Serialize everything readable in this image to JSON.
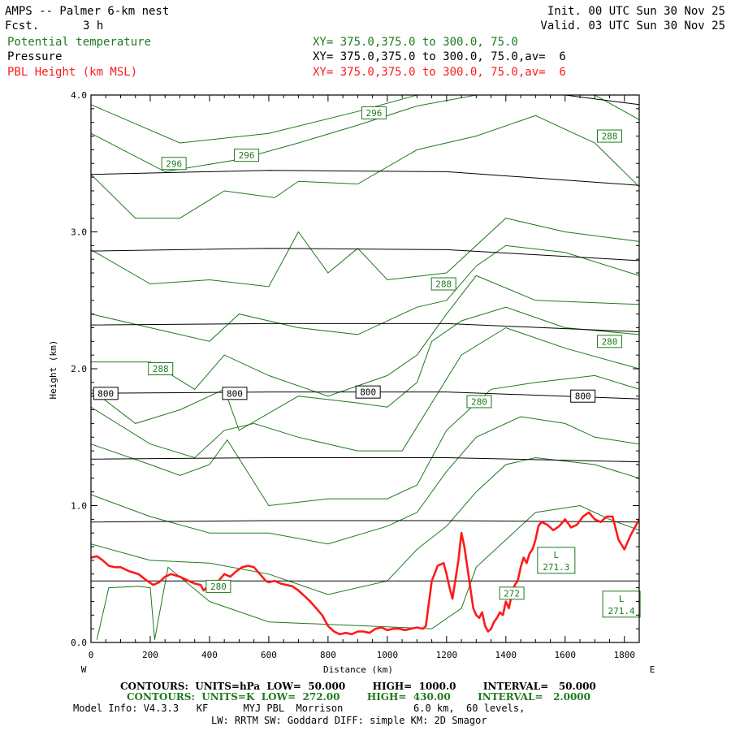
{
  "header": {
    "title": "AMPS -- Palmer 6-km nest",
    "fcst_label": "Fcst.",
    "fcst_value": "3 h",
    "init": "Init. 00 UTC Sun 30 Nov 25",
    "valid": "Valid. 03 UTC Sun 30 Nov 25",
    "var1": "Potential temperature",
    "var2": "Pressure",
    "var3": "PBL Height (km MSL)",
    "xy1": "XY= 375.0,375.0 to 300.0, 75.0",
    "xy2": "XY= 375.0,375.0 to 300.0, 75.0,av=  6",
    "xy3": "XY= 375.0,375.0 to 300.0, 75.0,av=  6"
  },
  "footer": {
    "line1": "CONTOURS:  UNITS=hPa  LOW=  50.000        HIGH=  1000.0        INTERVAL=   50.000",
    "line2": "CONTOURS:  UNITS=K  LOW=  272.00        HIGH=  430.00        INTERVAL=   2.0000",
    "line3": "Model Info: V4.3.3   KF      MYJ PBL  Morrison            6.0 km,  60 levels,",
    "line4": "LW: RRTM SW: Goddard DIFF: simple KM: 2D Smagor"
  },
  "colors": {
    "theta": "#1e7a1e",
    "pressure": "#000000",
    "pbl": "#ff1a1a"
  },
  "chart_data": {
    "type": "line",
    "title": "AMPS -- Palmer 6-km nest",
    "xlabel": "Distance (km)",
    "ylabel": "Height (km)",
    "xlim": [
      0,
      1850
    ],
    "ylim": [
      0.0,
      4.0
    ],
    "x_ticks": [
      0,
      200,
      400,
      600,
      800,
      1000,
      1200,
      1400,
      1600,
      1800
    ],
    "y_ticks": [
      0.0,
      1.0,
      2.0,
      3.0,
      4.0
    ],
    "y_tick_labels": [
      "0.0",
      "1.0",
      "2.0",
      "3.0",
      "4.0"
    ],
    "left_end_label": "W",
    "right_end_label": "E",
    "pressure_contours": [
      {
        "x": [
          0,
          600,
          1200,
          1850
        ],
        "y": [
          0.45,
          0.45,
          0.45,
          0.45
        ]
      },
      {
        "x": [
          0,
          600,
          1200,
          1850
        ],
        "y": [
          0.88,
          0.89,
          0.89,
          0.88
        ]
      },
      {
        "x": [
          0,
          600,
          1200,
          1850
        ],
        "y": [
          1.34,
          1.35,
          1.35,
          1.32
        ]
      },
      {
        "x": [
          0,
          600,
          1200,
          1850
        ],
        "y": [
          1.82,
          1.83,
          1.83,
          1.78
        ]
      },
      {
        "x": [
          0,
          600,
          1200,
          1850
        ],
        "y": [
          2.32,
          2.33,
          2.33,
          2.27
        ]
      },
      {
        "x": [
          0,
          600,
          1200,
          1850
        ],
        "y": [
          2.86,
          2.88,
          2.87,
          2.79
        ]
      },
      {
        "x": [
          0,
          600,
          1200,
          1850
        ],
        "y": [
          3.42,
          3.45,
          3.44,
          3.34
        ]
      },
      {
        "x": [
          0,
          1200,
          1600,
          1850
        ],
        "y": [
          4.0,
          4.0,
          4.0,
          3.93
        ]
      }
    ],
    "theta_contours": [
      {
        "x": [
          0,
          300,
          600,
          900,
          1100,
          1250,
          1400,
          1500,
          1600,
          1850
        ],
        "y": [
          3.93,
          3.65,
          3.72,
          3.88,
          4.05,
          4.1,
          4.15,
          4.2,
          4.25,
          4.3
        ]
      },
      {
        "x": [
          0,
          250,
          500,
          700,
          900,
          1100,
          1300,
          1500,
          1700,
          1850
        ],
        "y": [
          3.72,
          3.44,
          3.53,
          3.65,
          3.78,
          3.92,
          4.05,
          4.1,
          4.0,
          3.82
        ]
      },
      {
        "x": [
          0,
          150,
          300,
          450,
          620,
          700,
          900,
          1100,
          1300,
          1500,
          1700,
          1850
        ],
        "y": [
          3.42,
          3.1,
          3.1,
          3.3,
          3.25,
          3.37,
          3.35,
          3.6,
          3.7,
          3.85,
          3.65,
          3.33
        ]
      },
      {
        "x": [
          0,
          200,
          400,
          600,
          700,
          800,
          900,
          1000,
          1200,
          1400,
          1600,
          1850
        ],
        "y": [
          2.87,
          2.62,
          2.65,
          2.6,
          3.0,
          2.7,
          2.88,
          2.65,
          2.7,
          3.1,
          3.0,
          2.93
        ]
      },
      {
        "x": [
          0,
          200,
          400,
          500,
          700,
          900,
          1100,
          1200,
          1300,
          1400,
          1600,
          1850
        ],
        "y": [
          2.4,
          2.3,
          2.2,
          2.4,
          2.3,
          2.25,
          2.45,
          2.5,
          2.75,
          2.9,
          2.85,
          2.68
        ]
      },
      {
        "x": [
          0,
          200,
          350,
          450,
          600,
          800,
          1000,
          1100,
          1200,
          1300,
          1500,
          1850
        ],
        "y": [
          2.05,
          2.05,
          1.85,
          2.1,
          1.95,
          1.8,
          1.95,
          2.1,
          2.4,
          2.68,
          2.5,
          2.47
        ]
      },
      {
        "x": [
          0,
          150,
          300,
          450,
          500,
          700,
          900,
          1000,
          1100,
          1150,
          1250,
          1400,
          1600,
          1850
        ],
        "y": [
          1.85,
          1.6,
          1.7,
          1.85,
          1.55,
          1.8,
          1.75,
          1.72,
          1.9,
          2.2,
          2.35,
          2.45,
          2.3,
          2.25
        ]
      },
      {
        "x": [
          0,
          200,
          350,
          450,
          550,
          700,
          900,
          1050,
          1150,
          1250,
          1400,
          1600,
          1850
        ],
        "y": [
          1.72,
          1.45,
          1.35,
          1.55,
          1.6,
          1.5,
          1.4,
          1.4,
          1.75,
          2.1,
          2.3,
          2.15,
          2.0
        ]
      },
      {
        "x": [
          0,
          200,
          300,
          400,
          460,
          600,
          800,
          1000,
          1100,
          1200,
          1350,
          1500,
          1700,
          1850
        ],
        "y": [
          1.45,
          1.3,
          1.22,
          1.3,
          1.48,
          1.0,
          1.05,
          1.05,
          1.15,
          1.55,
          1.85,
          1.9,
          1.95,
          1.85
        ]
      },
      {
        "x": [
          0,
          200,
          400,
          600,
          800,
          1000,
          1100,
          1200,
          1300,
          1450,
          1600,
          1700,
          1850
        ],
        "y": [
          1.08,
          0.92,
          0.8,
          0.8,
          0.72,
          0.85,
          0.95,
          1.25,
          1.5,
          1.65,
          1.6,
          1.5,
          1.45
        ]
      },
      {
        "x": [
          0,
          200,
          400,
          600,
          800,
          1000,
          1100,
          1200,
          1300,
          1400,
          1500,
          1700,
          1850
        ],
        "y": [
          0.72,
          0.6,
          0.58,
          0.5,
          0.35,
          0.45,
          0.68,
          0.85,
          1.1,
          1.3,
          1.35,
          1.3,
          1.2
        ]
      },
      {
        "x": [
          20,
          60,
          160,
          200,
          215,
          260,
          400,
          600,
          1150,
          1250,
          1300,
          1400,
          1500,
          1650,
          1750,
          1850
        ],
        "y": [
          0.02,
          0.4,
          0.41,
          0.4,
          0.02,
          0.55,
          0.3,
          0.15,
          0.1,
          0.25,
          0.55,
          0.75,
          0.95,
          1.0,
          0.9,
          0.82
        ]
      }
    ],
    "theta_labels": [
      {
        "text": "296",
        "x": 955,
        "y": 3.87
      },
      {
        "text": "296",
        "x": 280,
        "y": 3.5
      },
      {
        "text": "296",
        "x": 525,
        "y": 3.56
      },
      {
        "text": "288",
        "x": 1750,
        "y": 3.7
      },
      {
        "text": "288",
        "x": 1190,
        "y": 2.62
      },
      {
        "text": "288",
        "x": 235,
        "y": 2.0
      },
      {
        "text": "280",
        "x": 1750,
        "y": 2.2
      },
      {
        "text": "280",
        "x": 1310,
        "y": 1.76
      },
      {
        "text": "280",
        "x": 430,
        "y": 0.41
      },
      {
        "text": "272",
        "x": 1420,
        "y": 0.36
      }
    ],
    "pressure_labels": [
      {
        "text": "800",
        "x": 50,
        "y": 1.82
      },
      {
        "text": "800",
        "x": 485,
        "y": 1.82
      },
      {
        "text": "800",
        "x": 935,
        "y": 1.83
      },
      {
        "text": "800",
        "x": 1660,
        "y": 1.8
      }
    ],
    "lows": [
      {
        "letter": "L",
        "value": "271.3",
        "x": 1570,
        "y": 0.6
      },
      {
        "letter": "L",
        "value": "271.4",
        "x": 1790,
        "y": 0.28
      }
    ],
    "pbl_height": {
      "x": [
        0,
        20,
        40,
        60,
        80,
        100,
        130,
        160,
        190,
        210,
        230,
        250,
        270,
        300,
        330,
        350,
        370,
        380,
        390,
        410,
        430,
        450,
        470,
        490,
        510,
        530,
        550,
        570,
        590,
        600,
        620,
        640,
        660,
        680,
        700,
        720,
        740,
        760,
        780,
        800,
        820,
        840,
        860,
        880,
        900,
        920,
        940,
        960,
        980,
        1000,
        1020,
        1040,
        1060,
        1080,
        1100,
        1120,
        1130,
        1150,
        1170,
        1190,
        1200,
        1210,
        1220,
        1240,
        1250,
        1260,
        1270,
        1280,
        1290,
        1300,
        1310,
        1320,
        1330,
        1340,
        1350,
        1360,
        1370,
        1380,
        1390,
        1400,
        1410,
        1420,
        1430,
        1440,
        1450,
        1460,
        1470,
        1480,
        1490,
        1500,
        1510,
        1520,
        1540,
        1560,
        1580,
        1600,
        1620,
        1640,
        1660,
        1680,
        1700,
        1720,
        1740,
        1760,
        1780,
        1800,
        1820,
        1850
      ],
      "y": [
        0.62,
        0.63,
        0.6,
        0.56,
        0.55,
        0.55,
        0.52,
        0.5,
        0.45,
        0.42,
        0.44,
        0.48,
        0.5,
        0.48,
        0.45,
        0.43,
        0.42,
        0.38,
        0.4,
        0.41,
        0.45,
        0.5,
        0.48,
        0.52,
        0.55,
        0.56,
        0.55,
        0.5,
        0.45,
        0.44,
        0.45,
        0.43,
        0.42,
        0.41,
        0.38,
        0.34,
        0.3,
        0.25,
        0.2,
        0.12,
        0.08,
        0.06,
        0.07,
        0.06,
        0.08,
        0.08,
        0.07,
        0.1,
        0.11,
        0.09,
        0.1,
        0.1,
        0.09,
        0.1,
        0.11,
        0.1,
        0.12,
        0.45,
        0.56,
        0.58,
        0.5,
        0.4,
        0.32,
        0.6,
        0.8,
        0.7,
        0.55,
        0.4,
        0.25,
        0.2,
        0.18,
        0.22,
        0.12,
        0.08,
        0.1,
        0.15,
        0.18,
        0.22,
        0.2,
        0.3,
        0.25,
        0.35,
        0.42,
        0.45,
        0.55,
        0.62,
        0.58,
        0.65,
        0.68,
        0.75,
        0.85,
        0.88,
        0.86,
        0.82,
        0.85,
        0.9,
        0.84,
        0.86,
        0.92,
        0.95,
        0.9,
        0.88,
        0.92,
        0.92,
        0.75,
        0.68,
        0.78,
        0.9
      ]
    }
  }
}
